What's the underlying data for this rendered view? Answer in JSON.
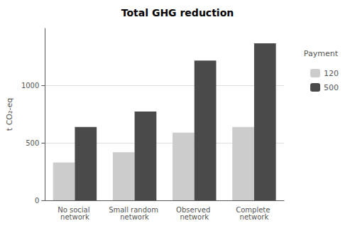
{
  "chart_data": {
    "type": "bar",
    "title": "Total GHG reduction",
    "categories": [
      "No social network",
      "Small random network",
      "Observed network",
      "Complete network"
    ],
    "series": [
      {
        "name": "120",
        "color": "#cccccc",
        "values": [
          330,
          420,
          590,
          640
        ]
      },
      {
        "name": "500",
        "color": "#4a4a4a",
        "values": [
          640,
          775,
          1220,
          1370
        ]
      }
    ],
    "ylabel": "t CO₂-eq",
    "legend_title": "Payment",
    "ylim": [
      0,
      1500
    ],
    "yticks": [
      0,
      500,
      1000
    ],
    "grid": true,
    "legend": "right"
  }
}
